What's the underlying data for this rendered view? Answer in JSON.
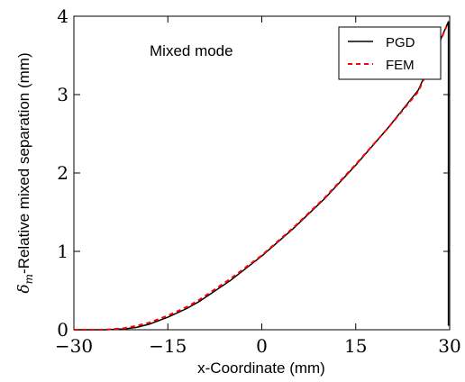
{
  "chart_data": {
    "type": "line",
    "annotation": "Mixed mode",
    "xlabel": "x-Coordinate (mm)",
    "ylabel_symbol": "δ",
    "ylabel_subscript": "m",
    "ylabel_text": "-Relative mixed separation (mm)",
    "xlim": [
      -30,
      30
    ],
    "ylim": [
      0,
      4
    ],
    "xticks": [
      -30,
      -15,
      0,
      15,
      30
    ],
    "xtick_labels": [
      "−30",
      "−15",
      "0",
      "15",
      "30"
    ],
    "yticks": [
      0,
      1,
      2,
      3,
      4
    ],
    "ytick_labels": [
      "0",
      "1",
      "2",
      "3",
      "4"
    ],
    "grid": false,
    "legend_position": "top-right",
    "series": [
      {
        "name": "PGD",
        "color": "#000000",
        "style": "solid",
        "x": [
          -30,
          -25,
          -22,
          -20,
          -18,
          -15,
          -12,
          -10,
          -5,
          0,
          5,
          10,
          15,
          20,
          25,
          29.8,
          29.8
        ],
        "y": [
          0,
          0,
          0.01,
          0.03,
          0.07,
          0.16,
          0.27,
          0.36,
          0.63,
          0.94,
          1.29,
          1.67,
          2.1,
          2.56,
          3.06,
          3.93,
          0.05
        ]
      },
      {
        "name": "FEM",
        "color": "#ff0000",
        "style": "dashed",
        "x": [
          -30,
          -25,
          -22,
          -20,
          -18,
          -15,
          -12,
          -10,
          -5,
          0,
          5,
          10,
          15,
          20,
          25,
          29.5
        ],
        "y": [
          0,
          0,
          0.02,
          0.05,
          0.09,
          0.18,
          0.29,
          0.38,
          0.65,
          0.95,
          1.3,
          1.68,
          2.11,
          2.56,
          3.04,
          3.87
        ]
      }
    ]
  }
}
